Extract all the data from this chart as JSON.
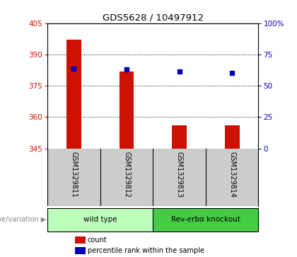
{
  "title": "GDS5628 / 10497912",
  "samples": [
    "GSM1329811",
    "GSM1329812",
    "GSM1329813",
    "GSM1329814"
  ],
  "bar_values": [
    397,
    382,
    356,
    356
  ],
  "percentile_values": [
    63.5,
    63.0,
    61.5,
    60.5
  ],
  "ylim_left": [
    345,
    405
  ],
  "yticks_left": [
    345,
    360,
    375,
    390,
    405
  ],
  "yticks_right": [
    0,
    25,
    50,
    75,
    100
  ],
  "ylim_right": [
    0,
    100
  ],
  "bar_color": "#cc1100",
  "dot_color": "#0000bb",
  "bar_bottom": 345,
  "grid_values": [
    360,
    375,
    390
  ],
  "groups": [
    {
      "label": "wild type",
      "samples": [
        0,
        1
      ],
      "color": "#bbffbb"
    },
    {
      "label": "Rev-erbα knockout",
      "samples": [
        2,
        3
      ],
      "color": "#44cc44"
    }
  ],
  "genotype_label": "genotype/variation",
  "legend_items": [
    {
      "color": "#cc1100",
      "label": "count"
    },
    {
      "color": "#0000bb",
      "label": "percentile rank within the sample"
    }
  ],
  "background_color": "#ffffff",
  "plot_bg": "#ffffff",
  "table_bg": "#cccccc"
}
